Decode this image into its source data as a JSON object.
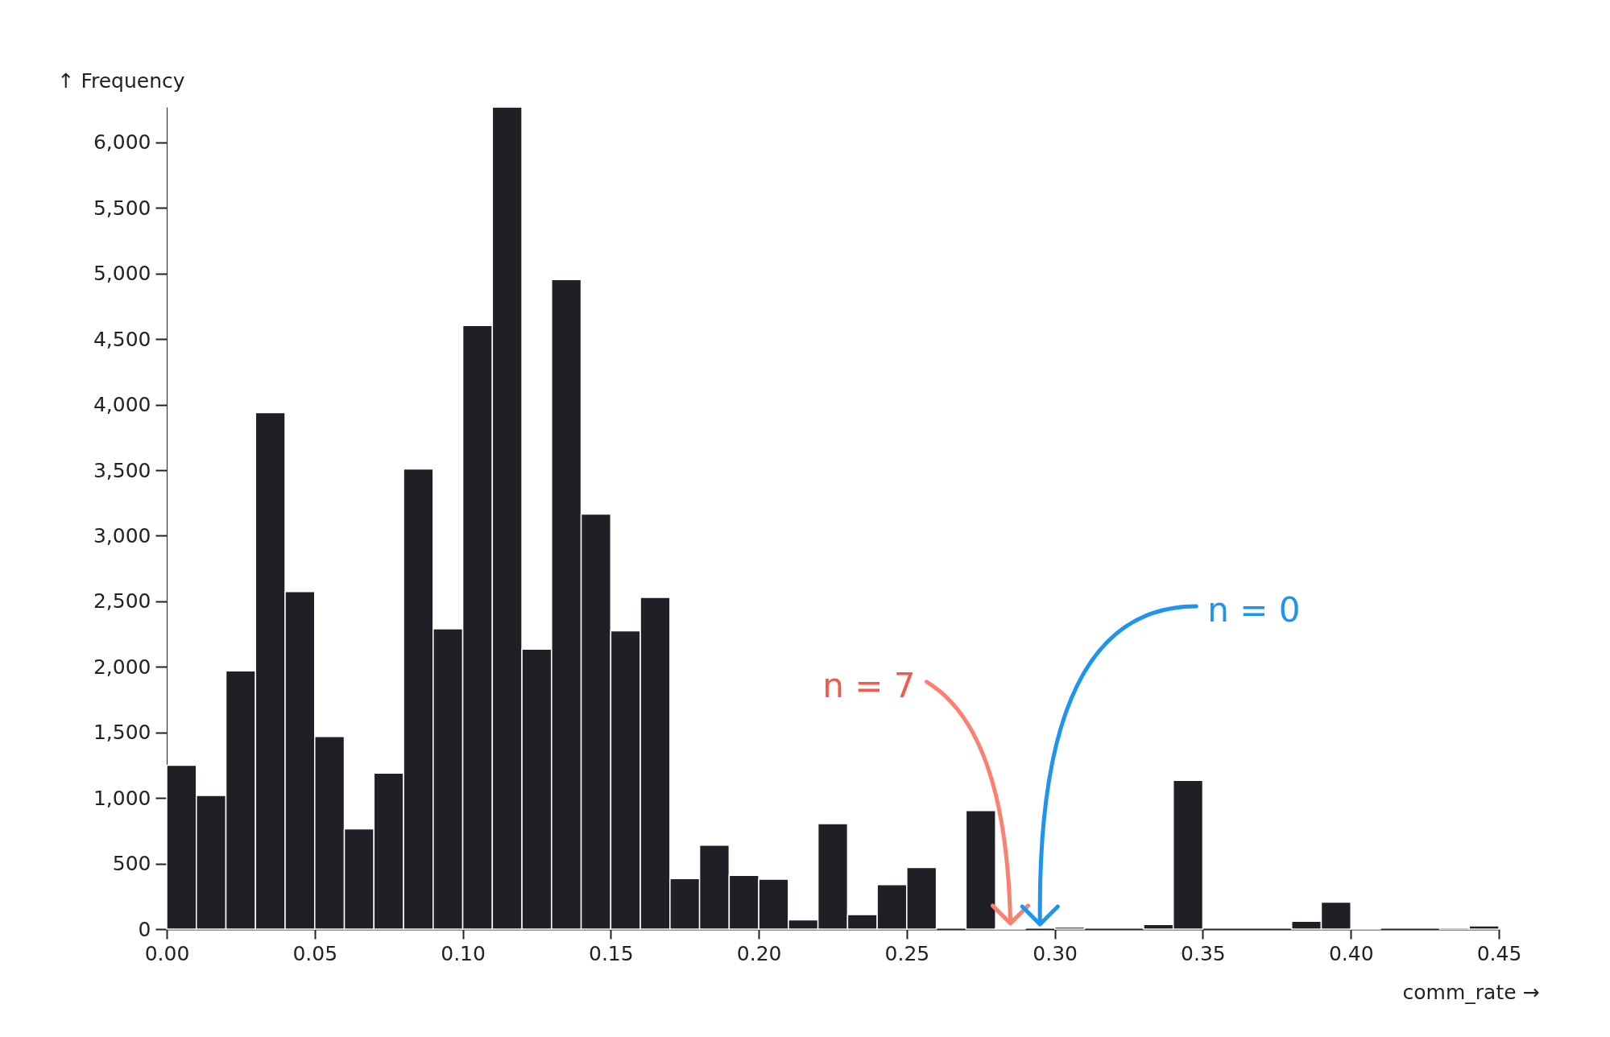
{
  "chart_data": {
    "type": "histogram",
    "xlabel": "comm_rate →",
    "ylabel": "↑ Frequency",
    "bins": [
      0,
      0.01,
      0.02,
      0.03,
      0.04,
      0.05,
      0.06,
      0.07,
      0.08,
      0.09,
      0.1,
      0.11,
      0.12,
      0.13,
      0.14,
      0.15,
      0.16,
      0.17,
      0.18,
      0.19,
      0.2,
      0.21,
      0.22,
      0.23,
      0.24,
      0.25,
      0.26,
      0.27,
      0.28,
      0.29,
      0.3,
      0.31,
      0.32,
      0.33,
      0.34,
      0.35,
      0.36,
      0.37,
      0.38,
      0.39,
      0.4,
      0.41,
      0.42,
      0.43,
      0.44,
      0.45
    ],
    "values": [
      1250,
      1020,
      1970,
      3940,
      2575,
      1470,
      765,
      1190,
      3510,
      2290,
      4605,
      6270,
      2135,
      4955,
      3165,
      2275,
      2530,
      385,
      640,
      410,
      380,
      70,
      805,
      110,
      340,
      470,
      0,
      905,
      7,
      0,
      15,
      0,
      0,
      35,
      1135,
      0,
      0,
      0,
      60,
      205,
      5,
      0,
      0,
      10,
      25
    ],
    "color": "#1f2025",
    "xlim": [
      0,
      0.45
    ],
    "xticks": [
      {
        "value": 0,
        "label": "0.00"
      },
      {
        "value": 0.05,
        "label": "0.05"
      },
      {
        "value": 0.1,
        "label": "0.10"
      },
      {
        "value": 0.15,
        "label": "0.15"
      },
      {
        "value": 0.2,
        "label": "0.20"
      },
      {
        "value": 0.25,
        "label": "0.25"
      },
      {
        "value": 0.3,
        "label": "0.30"
      },
      {
        "value": 0.35,
        "label": "0.35"
      },
      {
        "value": 0.4,
        "label": "0.40"
      },
      {
        "value": 0.45,
        "label": "0.45"
      }
    ],
    "yticks": [
      0,
      500,
      {
        "value": 1000,
        "label": "1,000"
      },
      {
        "value": 1500,
        "label": "1,500"
      },
      {
        "value": 2000,
        "label": "2,000"
      },
      {
        "value": 2500,
        "label": "2,500"
      },
      {
        "value": 3000,
        "label": "3,000"
      },
      {
        "value": 3500,
        "label": "3,500"
      },
      {
        "value": 4000,
        "label": "4,000"
      },
      {
        "value": 4500,
        "label": "4,500"
      },
      {
        "value": 5000,
        "label": "5,000"
      },
      {
        "value": 5500,
        "label": "5,500"
      },
      {
        "value": 6000,
        "label": "6,000"
      }
    ],
    "annotations": [
      {
        "text": "n = 7",
        "x": 0.285,
        "y": 7
      },
      {
        "text": "n = 0",
        "x": 0.295,
        "y": 0
      }
    ],
    "ylim": [
      0,
      6270
    ],
    "grid": false
  }
}
